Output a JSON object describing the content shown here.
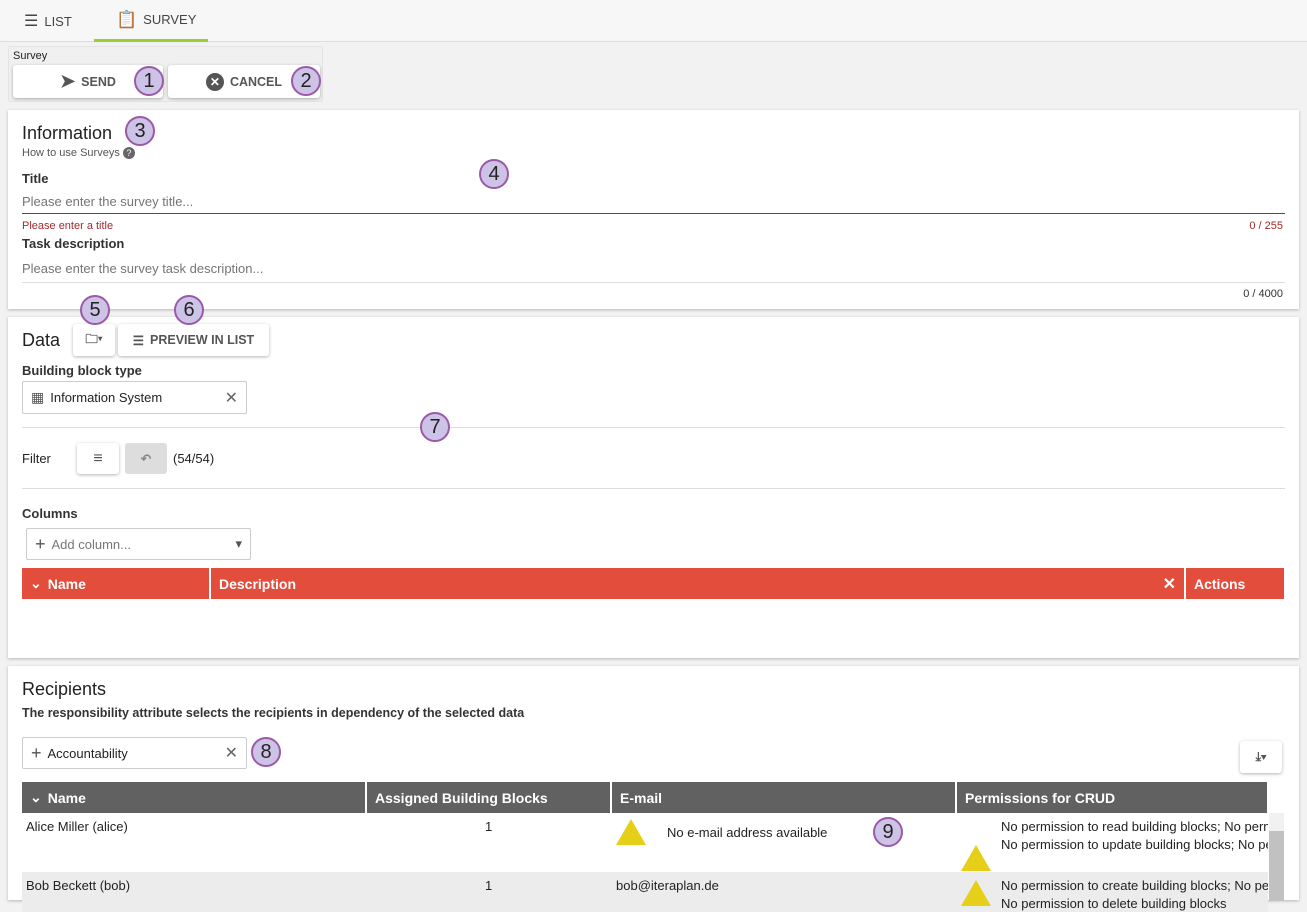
{
  "tabs": [
    {
      "label": "LIST",
      "icon": "list-icon"
    },
    {
      "label": "SURVEY",
      "icon": "clipboard-icon",
      "active": true
    }
  ],
  "toolbar": {
    "group_label": "Survey",
    "send": "SEND",
    "cancel": "CANCEL"
  },
  "badges": [
    "1",
    "2",
    "3",
    "4",
    "5",
    "6",
    "7",
    "8",
    "9"
  ],
  "information": {
    "heading": "Information",
    "help": "How to use Surveys",
    "title_label": "Title",
    "title_placeholder": "Please enter the survey title...",
    "title_error": "Please enter a title",
    "title_count": "0 / 255",
    "desc_label": "Task description",
    "desc_placeholder": "Please enter the survey task description...",
    "desc_count": "0 / 4000"
  },
  "data": {
    "heading": "Data",
    "preview": "PREVIEW IN LIST",
    "bb_label": "Building block type",
    "bb_value": "Information System",
    "filter_label": "Filter",
    "filter_count": "(54/54)",
    "columns_label": "Columns",
    "add_column_placeholder": "Add column...",
    "table_headers": [
      "Name",
      "Description",
      "Actions"
    ],
    "header_color": "#e34d3c"
  },
  "recipients": {
    "heading": "Recipients",
    "description": "The responsibility attribute selects the recipients in dependency of the selected data",
    "attribute": "Accountability",
    "headers": [
      "Name",
      "Assigned Building Blocks",
      "E-mail",
      "Permissions for CRUD"
    ],
    "rows": [
      {
        "name": "Alice Miller (alice)",
        "count": "1",
        "email": "No e-mail address available",
        "email_warning": true,
        "perm1": "No permission to read building blocks; No perm",
        "perm2": "No permission to update building blocks; No pe"
      },
      {
        "name": "Bob Beckett (bob)",
        "count": "1",
        "email": "bob@iteraplan.de",
        "email_warning": false,
        "perm1": "No permission to create building blocks; No per",
        "perm2": "No permission to delete building blocks"
      }
    ]
  }
}
